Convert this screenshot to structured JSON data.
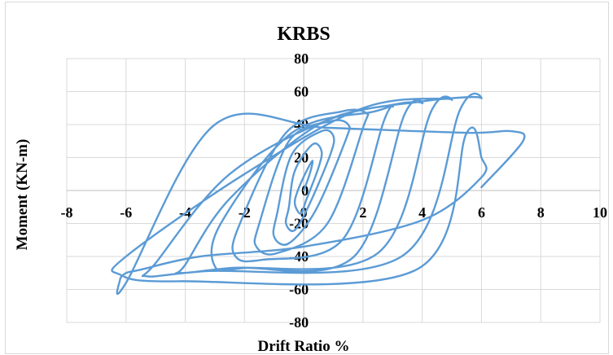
{
  "chart_data": {
    "type": "line",
    "title": "KRBS",
    "xlabel": "Drift Ratio %",
    "ylabel": "Moment (KN-m)",
    "xlim": [
      -8,
      10
    ],
    "ylim": [
      -80,
      80
    ],
    "x_ticks": [
      -8,
      -6,
      -4,
      -2,
      0,
      2,
      4,
      6,
      8,
      10
    ],
    "y_ticks": [
      -80,
      -60,
      -40,
      -20,
      0,
      20,
      40,
      60,
      80
    ],
    "grid": true,
    "legend": "none",
    "line_color": "#5b9bd5",
    "series": [
      {
        "x": [
          0,
          0.2,
          0.3,
          0.1,
          -0.2,
          -0.3,
          -0.1,
          0.1,
          0.5,
          0.6,
          0.3,
          -0.3,
          -0.5,
          -0.6,
          -0.3,
          0.2,
          0.9,
          1.0,
          0.6,
          -0.4,
          -0.9,
          -1.0,
          -0.5,
          0.4,
          1.4,
          1.5,
          0.9,
          -0.5,
          -1.5,
          -1.6,
          -0.9,
          0.8,
          2.0,
          2.1,
          1.3,
          -0.6,
          -2.2,
          -2.3,
          -1.4,
          1.3,
          2.7,
          3.0,
          2.4,
          -0.4,
          -2.8,
          -3.0,
          -2.0,
          1.7,
          3.4,
          4.0,
          3.0,
          0.5,
          -2.5,
          -4.0,
          -4.2,
          -2.5,
          2.5,
          4.3,
          5.0,
          4.0,
          1.0,
          -2.5,
          -5.0,
          -5.3,
          -3.4,
          3.3,
          5.3,
          6.0,
          5.0,
          2.0,
          -2.0,
          -6.0,
          -6.2,
          -4.2,
          3.8,
          5.5,
          6.0,
          6.0,
          4.0,
          0.0,
          -3.5,
          -5.5,
          -6.0,
          -6.2,
          -6.0,
          -3.0,
          0.8,
          5.5,
          7.0,
          7.4,
          6.0
        ],
        "y": [
          0,
          10,
          18,
          12,
          0,
          -8,
          -14,
          -5,
          14,
          24,
          28,
          12,
          -10,
          -20,
          -24,
          -8,
          22,
          33,
          36,
          22,
          -14,
          -28,
          -32,
          -12,
          30,
          40,
          42,
          30,
          -20,
          -34,
          -38,
          -20,
          38,
          47,
          48,
          35,
          -22,
          -40,
          -42,
          -30,
          42,
          51,
          48,
          35,
          -20,
          -46,
          -47,
          -40,
          46,
          53,
          52,
          40,
          -5,
          -45,
          -50,
          -47,
          -38,
          48,
          55,
          54,
          44,
          10,
          -44,
          -52,
          -49,
          -40,
          50,
          56,
          56,
          50,
          10,
          -40,
          -51,
          -55,
          -48,
          35,
          20,
          8,
          -18,
          -34,
          -40,
          -48,
          -50,
          -54,
          -56,
          40,
          38,
          35,
          36,
          30,
          2
        ]
      }
    ]
  }
}
